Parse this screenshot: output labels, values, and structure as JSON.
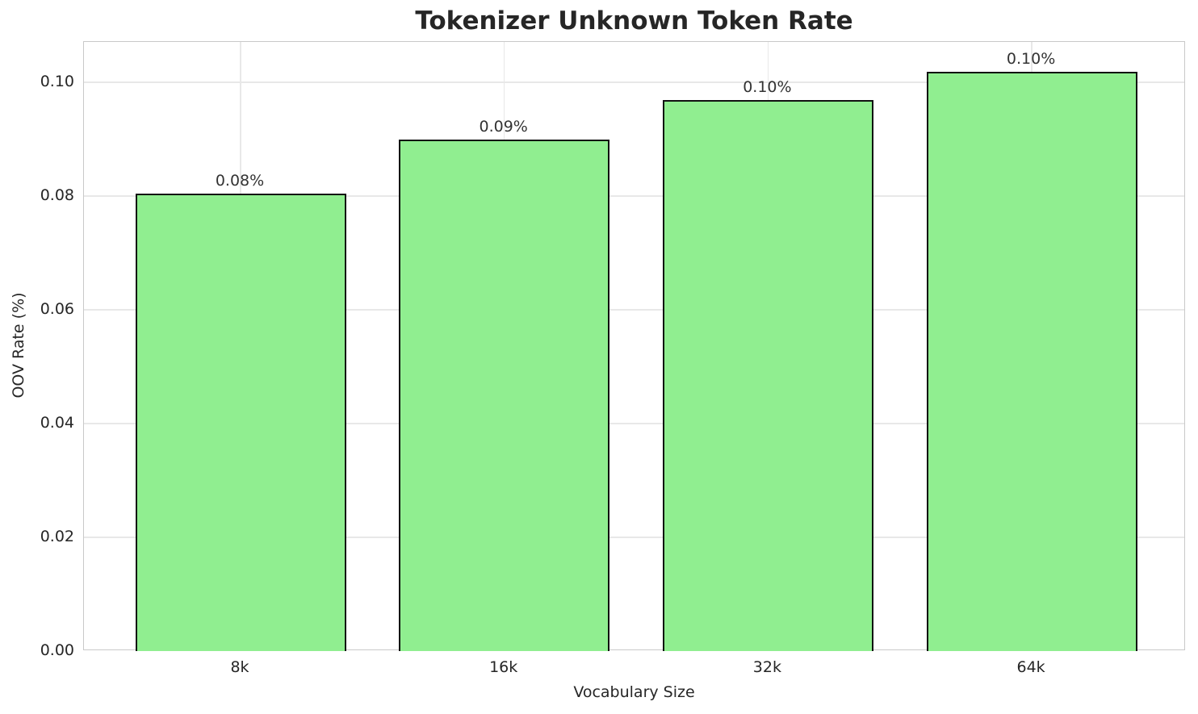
{
  "chart_data": {
    "type": "bar",
    "title": "Tokenizer Unknown Token Rate",
    "xlabel": "Vocabulary Size",
    "ylabel": "OOV Rate (%)",
    "categories": [
      "8k",
      "16k",
      "32k",
      "64k"
    ],
    "values": [
      0.0805,
      0.09,
      0.0969,
      0.1018
    ],
    "bar_labels": [
      "0.08%",
      "0.09%",
      "0.10%",
      "0.10%"
    ],
    "ytick_labels": [
      "0.00",
      "0.02",
      "0.04",
      "0.06",
      "0.08",
      "0.10"
    ],
    "ytick_values": [
      0,
      0.02,
      0.04,
      0.06,
      0.08,
      0.1
    ],
    "ylim": [
      0,
      0.1071
    ],
    "grid": true,
    "legend_position": "none",
    "bar_color": "#90EE90",
    "bar_edge_color": "#111111",
    "grid_color": "#e8e8e8",
    "spine_color": "#c9c9c9",
    "tick_text_color": "#262626",
    "bar_label_color": "#333333"
  }
}
